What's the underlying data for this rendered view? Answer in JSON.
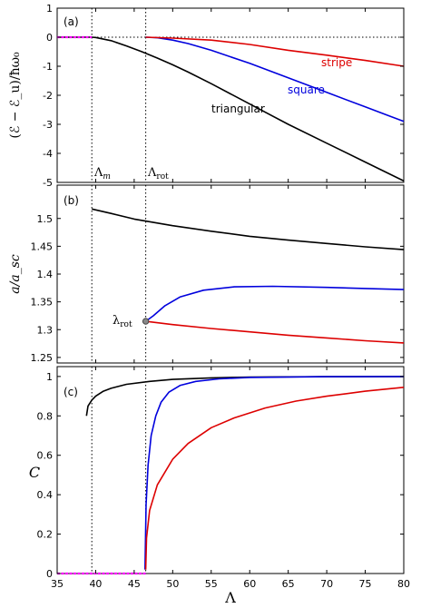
{
  "chart_data": [
    {
      "type": "line",
      "panel_label": "(a)",
      "ylabel": "(ℰ − ℰ_u)/ħω₀",
      "xlim": [
        35,
        80
      ],
      "ylim": [
        -5,
        1
      ],
      "yticks": [
        "1",
        "0",
        "-1",
        "-2",
        "-3",
        "-4",
        "-5"
      ],
      "vlines": [
        {
          "x": 39.5,
          "label": "Λ_m"
        },
        {
          "x": 46.5,
          "label": "Λ_rot"
        }
      ],
      "series": [
        {
          "name": "triangular",
          "color": "#000000",
          "x": [
            35,
            39.5,
            40,
            42,
            44,
            46,
            48,
            50,
            52,
            55,
            60,
            65,
            70,
            75,
            80
          ],
          "y": [
            0,
            0,
            -0.01,
            -0.12,
            -0.3,
            -0.5,
            -0.72,
            -0.95,
            -1.2,
            -1.6,
            -2.3,
            -3.0,
            -3.65,
            -4.3,
            -4.95
          ]
        },
        {
          "name": "square",
          "color": "#0000dd",
          "x": [
            46.5,
            48,
            50,
            52,
            55,
            60,
            65,
            70,
            75,
            80
          ],
          "y": [
            0,
            -0.02,
            -0.1,
            -0.22,
            -0.45,
            -0.9,
            -1.4,
            -1.9,
            -2.4,
            -2.9
          ]
        },
        {
          "name": "stripe",
          "color": "#dd0000",
          "x": [
            46.5,
            50,
            55,
            60,
            65,
            70,
            75,
            80
          ],
          "y": [
            0,
            -0.03,
            -0.1,
            -0.25,
            -0.45,
            -0.62,
            -0.8,
            -1.0
          ]
        }
      ],
      "dotted_zero_line": true,
      "magenta_segment": {
        "x": [
          35,
          39.5
        ],
        "y": 0,
        "color": "#ff00ff"
      }
    },
    {
      "type": "line",
      "panel_label": "(b)",
      "ylabel": "a/a_sc",
      "xlim": [
        35,
        80
      ],
      "ylim": [
        1.24,
        1.56
      ],
      "yticks": [
        "1.5",
        "1.45",
        "1.4",
        "1.35",
        "1.3",
        "1.25"
      ],
      "point_label": "λ_rot",
      "point": {
        "x": 46.5,
        "y": 1.315
      },
      "series": [
        {
          "name": "triangular",
          "color": "#000000",
          "x": [
            39.5,
            42,
            45,
            50,
            55,
            60,
            65,
            70,
            75,
            80
          ],
          "y": [
            1.517,
            1.509,
            1.499,
            1.487,
            1.477,
            1.468,
            1.461,
            1.455,
            1.449,
            1.444
          ]
        },
        {
          "name": "square",
          "color": "#0000dd",
          "x": [
            46.5,
            47.5,
            49,
            51,
            54,
            58,
            63,
            70,
            75,
            80
          ],
          "y": [
            1.315,
            1.325,
            1.343,
            1.359,
            1.371,
            1.377,
            1.378,
            1.376,
            1.374,
            1.372
          ]
        },
        {
          "name": "stripe",
          "color": "#dd0000",
          "x": [
            46.5,
            50,
            55,
            60,
            65,
            70,
            75,
            80
          ],
          "y": [
            1.315,
            1.309,
            1.302,
            1.296,
            1.29,
            1.285,
            1.28,
            1.276
          ]
        }
      ]
    },
    {
      "type": "line",
      "panel_label": "(c)",
      "ylabel": "C",
      "xlabel": "Λ",
      "xlim": [
        35,
        80
      ],
      "ylim": [
        0,
        1.05
      ],
      "yticks": [
        "1",
        "0.8",
        "0.6",
        "0.4",
        "0.2",
        "0"
      ],
      "xticks": [
        "35",
        "40",
        "45",
        "50",
        "55",
        "60",
        "65",
        "70",
        "75",
        "80"
      ],
      "series": [
        {
          "name": "triangular",
          "color": "#000000",
          "x": [
            38.8,
            39.0,
            39.5,
            40,
            41,
            42,
            44,
            47,
            50,
            55,
            60,
            70,
            80
          ],
          "y": [
            0.8,
            0.85,
            0.88,
            0.9,
            0.925,
            0.94,
            0.96,
            0.975,
            0.985,
            0.993,
            0.997,
            0.999,
            1.0
          ]
        },
        {
          "name": "square",
          "color": "#0000dd",
          "x": [
            46.4,
            46.55,
            46.8,
            47.2,
            47.8,
            48.5,
            49.5,
            51,
            53,
            56,
            60,
            70,
            80
          ],
          "y": [
            0.02,
            0.35,
            0.55,
            0.7,
            0.8,
            0.87,
            0.92,
            0.955,
            0.975,
            0.988,
            0.995,
            0.999,
            1.0
          ]
        },
        {
          "name": "stripe",
          "color": "#dd0000",
          "x": [
            46.5,
            46.6,
            47,
            48,
            50,
            52,
            55,
            58,
            62,
            66,
            70,
            75,
            80
          ],
          "y": [
            0.02,
            0.18,
            0.32,
            0.45,
            0.58,
            0.66,
            0.74,
            0.79,
            0.84,
            0.875,
            0.9,
            0.925,
            0.945
          ]
        }
      ],
      "magenta_segment": {
        "x": [
          35,
          46.5
        ],
        "y": 0,
        "color": "#ff00ff"
      }
    }
  ]
}
